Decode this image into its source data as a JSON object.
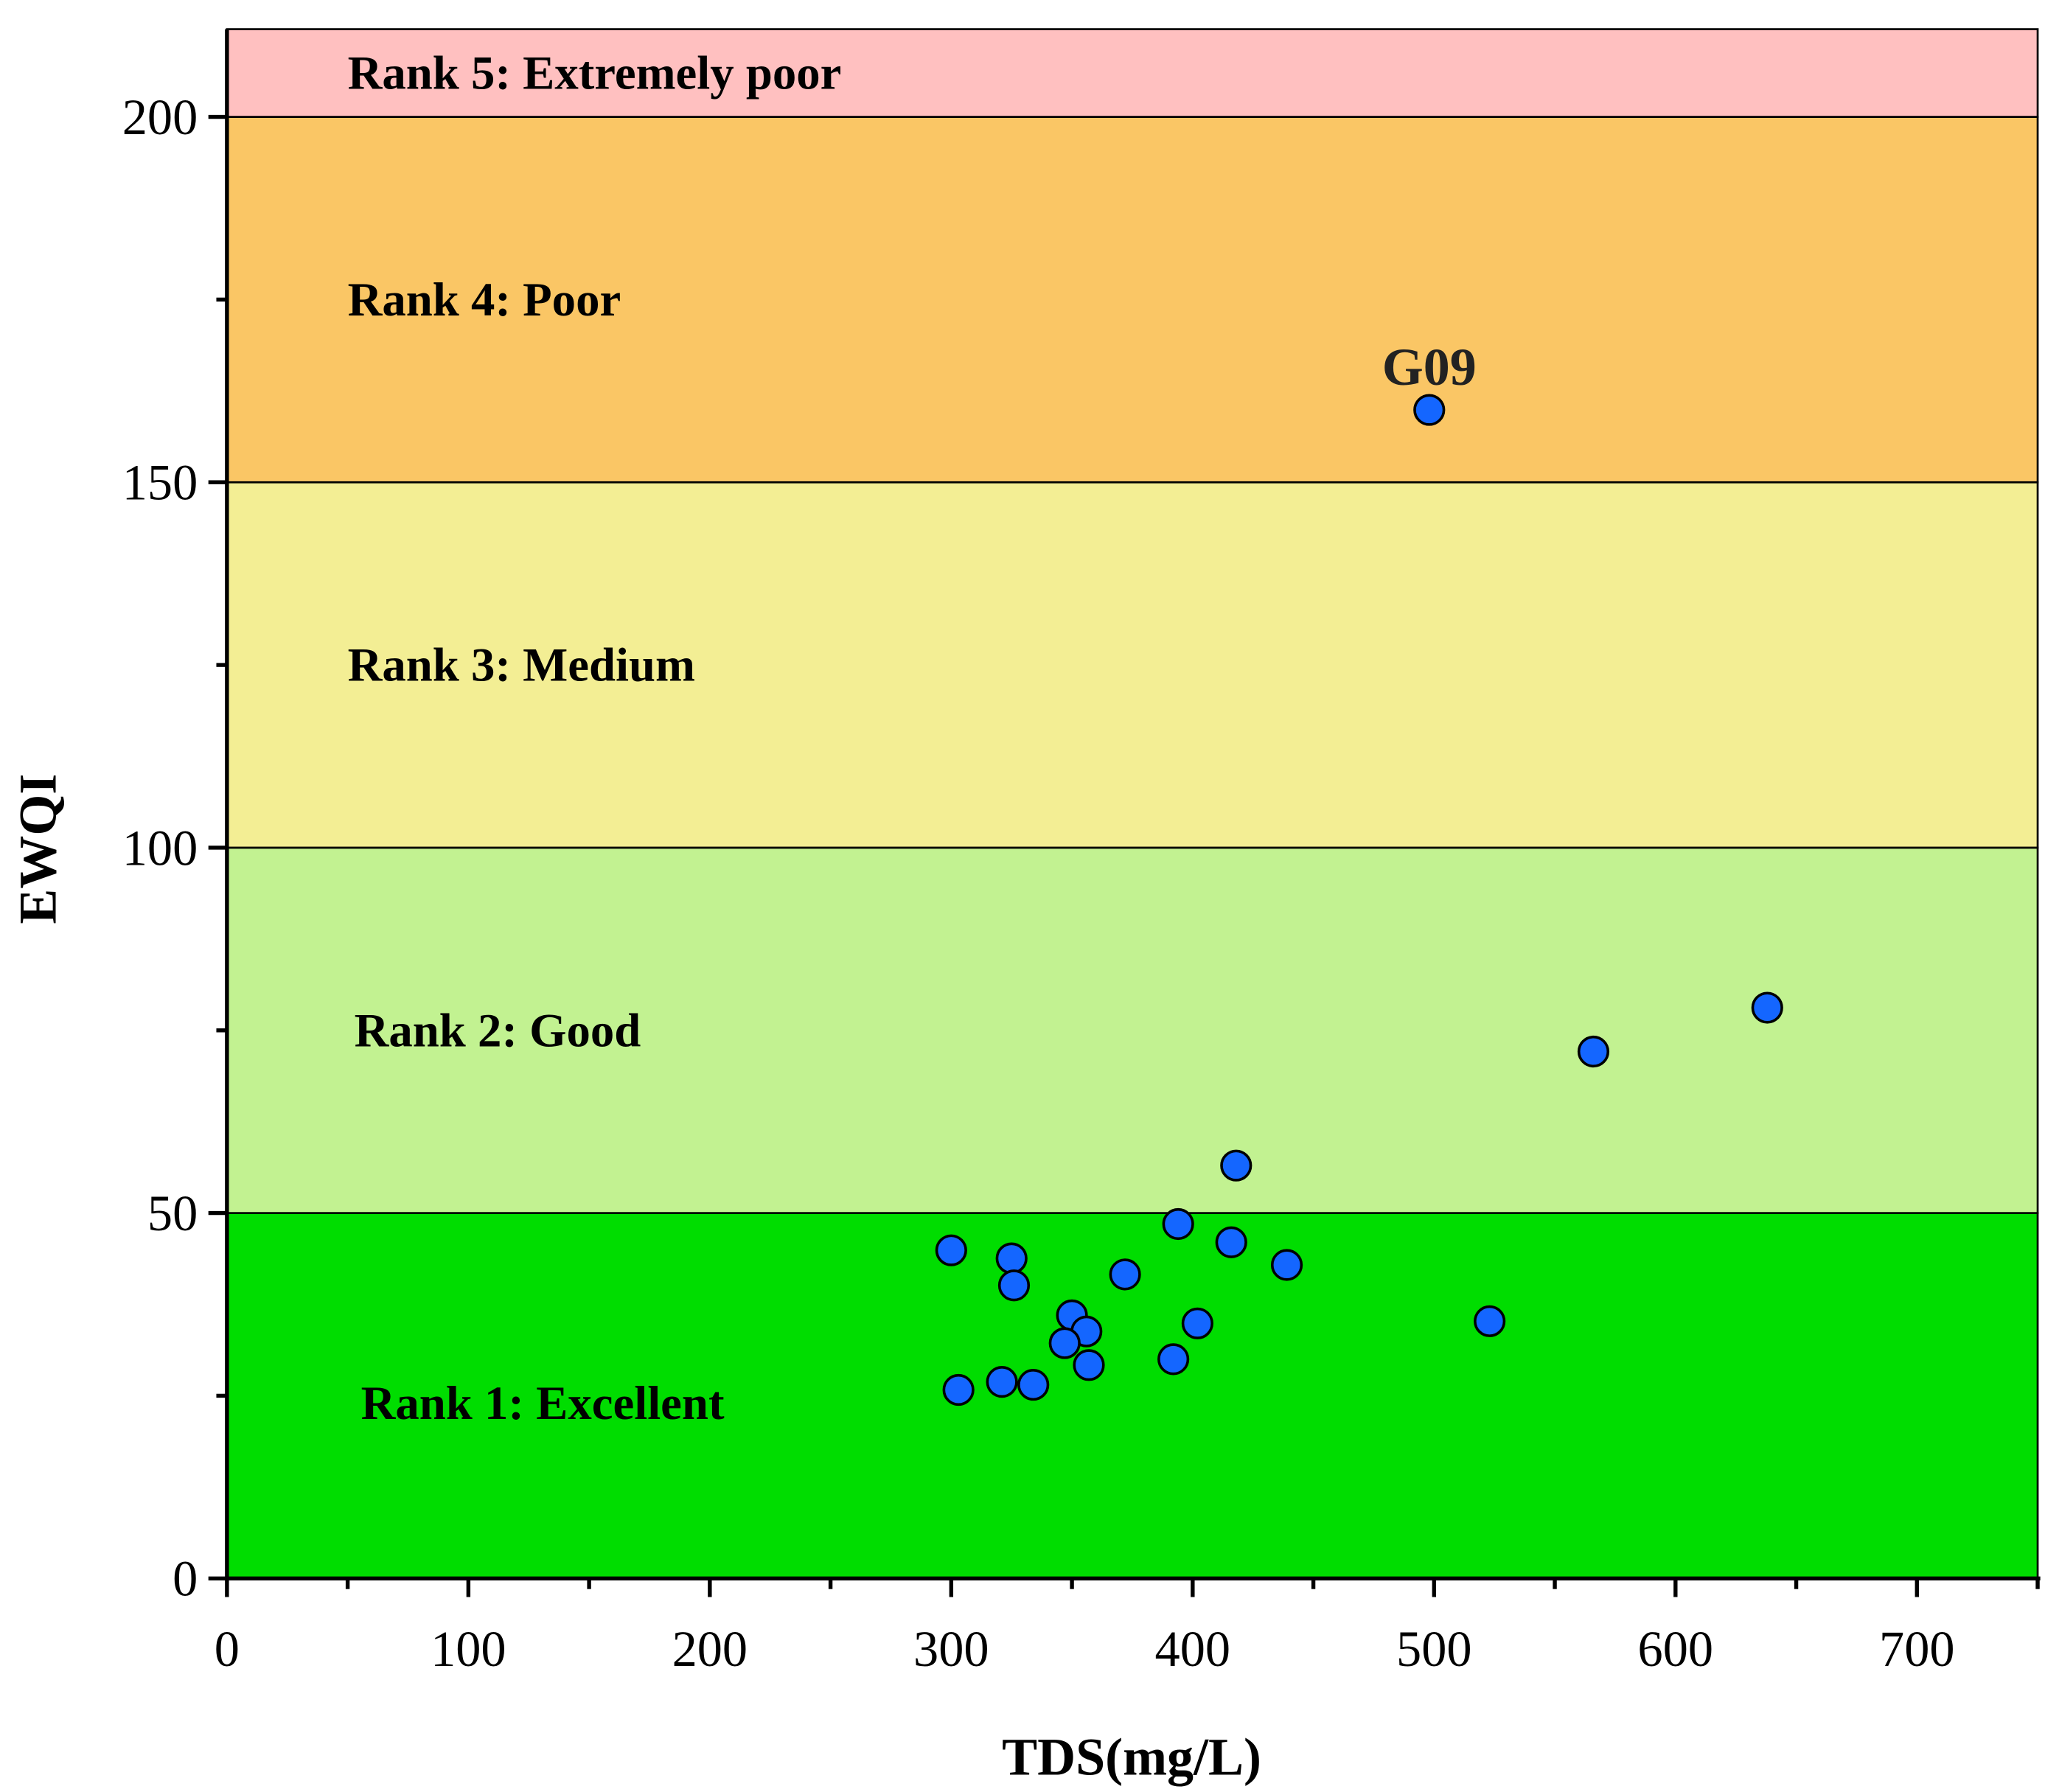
{
  "chart_data": {
    "type": "scatter",
    "title": "",
    "xlabel": "TDS(mg/L)",
    "ylabel": "EWQI",
    "xlim": [
      0,
      750
    ],
    "ylim": [
      0,
      212
    ],
    "x_ticks": [
      0,
      100,
      200,
      300,
      400,
      500,
      600,
      700
    ],
    "y_ticks": [
      0,
      50,
      100,
      150,
      200
    ],
    "grid": false,
    "bands": [
      {
        "label": "Rank 1: Excellent",
        "from": 0,
        "to": 50,
        "color": "#00DD00"
      },
      {
        "label": "Rank 2: Good",
        "from": 50,
        "to": 100,
        "color": "#C2F291"
      },
      {
        "label": "Rank 3: Medium",
        "from": 100,
        "to": 150,
        "color": "#F3EE94"
      },
      {
        "label": "Rank 4: Poor",
        "from": 150,
        "to": 200,
        "color": "#FAC665"
      },
      {
        "label": "Rank 5: Extremely poor",
        "from": 200,
        "to": 212,
        "color": "#FFC0C0"
      }
    ],
    "point_color": "#1466FF",
    "points": [
      {
        "x": 300,
        "y": 44.9
      },
      {
        "x": 325,
        "y": 43.8
      },
      {
        "x": 326,
        "y": 40.1
      },
      {
        "x": 303,
        "y": 25.8
      },
      {
        "x": 321,
        "y": 26.9
      },
      {
        "x": 334,
        "y": 26.5
      },
      {
        "x": 350,
        "y": 36.0
      },
      {
        "x": 356,
        "y": 33.8
      },
      {
        "x": 347,
        "y": 32.2
      },
      {
        "x": 357,
        "y": 29.2
      },
      {
        "x": 372,
        "y": 41.6
      },
      {
        "x": 394,
        "y": 48.5
      },
      {
        "x": 392,
        "y": 30.0
      },
      {
        "x": 402,
        "y": 34.9
      },
      {
        "x": 416,
        "y": 46.0
      },
      {
        "x": 418,
        "y": 56.5
      },
      {
        "x": 439,
        "y": 42.9
      },
      {
        "x": 523,
        "y": 35.2
      },
      {
        "x": 566,
        "y": 72.1
      },
      {
        "x": 638,
        "y": 78.1
      },
      {
        "x": 498,
        "y": 159.9,
        "label": "G09"
      }
    ]
  }
}
